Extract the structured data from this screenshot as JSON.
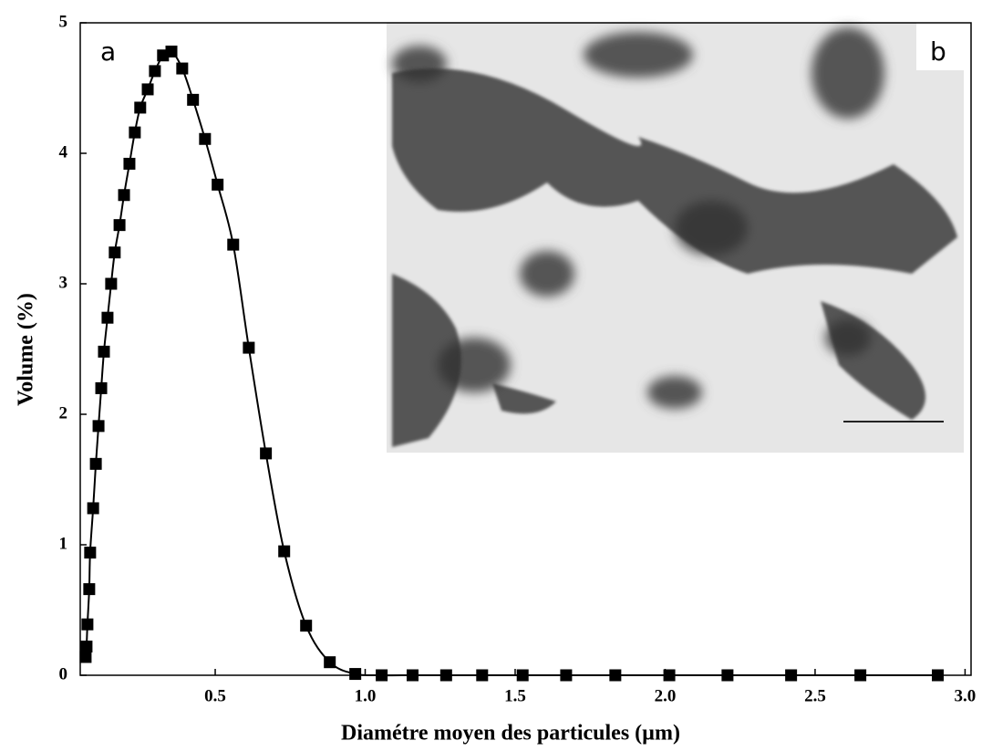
{
  "chart_data": {
    "type": "line",
    "xlabel": "Diamétre moyen des particules (µm)",
    "ylabel": "Volume (%)",
    "annotations": [
      "a",
      "b"
    ],
    "x": [
      0.068,
      0.071,
      0.074,
      0.08,
      0.083,
      0.093,
      0.102,
      0.111,
      0.12,
      0.129,
      0.141,
      0.153,
      0.165,
      0.181,
      0.196,
      0.214,
      0.232,
      0.25,
      0.275,
      0.299,
      0.326,
      0.354,
      0.39,
      0.426,
      0.466,
      0.508,
      0.56,
      0.612,
      0.669,
      0.73,
      0.803,
      0.882,
      0.967,
      1.055,
      1.158,
      1.27,
      1.39,
      1.525,
      1.67,
      1.834,
      2.014,
      2.208,
      2.42,
      2.651,
      2.909
    ],
    "values": [
      0.14,
      0.22,
      0.39,
      0.66,
      0.94,
      1.28,
      1.62,
      1.91,
      2.2,
      2.48,
      2.74,
      3.0,
      3.24,
      3.45,
      3.68,
      3.92,
      4.16,
      4.35,
      4.49,
      4.63,
      4.75,
      4.78,
      4.65,
      4.41,
      4.11,
      3.76,
      3.3,
      2.51,
      1.7,
      0.95,
      0.38,
      0.1,
      0.01,
      0,
      0,
      0,
      0,
      0,
      0,
      0,
      0,
      0,
      0,
      0,
      0
    ],
    "color": "#000000",
    "xlim": [
      0.05,
      3.02
    ],
    "ylim": [
      0,
      5
    ],
    "xticks": [
      0.5,
      {
        "value": 1,
        "label": "1.0"
      },
      1.5,
      {
        "value": 2,
        "label": "2.0"
      },
      2.5,
      {
        "value": 3,
        "label": "3.0"
      }
    ],
    "yticks": [
      0,
      1,
      2,
      3,
      4,
      5
    ]
  }
}
